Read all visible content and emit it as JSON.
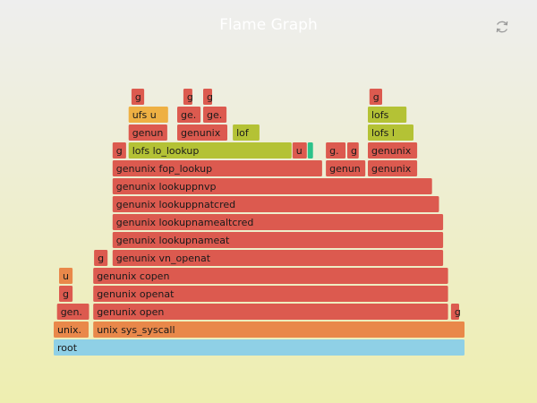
{
  "title": "Flame Graph",
  "refresh_icon": "refresh-icon",
  "colors": {
    "root": "#8fd0e6",
    "syscall": "#e9884a",
    "red": "#dc5a4f",
    "green": "#b4c235",
    "yellow": "#eeb043",
    "teal": "#2cc28a"
  },
  "chart_data": {
    "type": "flamegraph",
    "total": 100,
    "frames": [
      {
        "label": "root",
        "depth": 0,
        "start": 0.0,
        "width": 100.0,
        "color": "root"
      },
      {
        "label": "unix..",
        "depth": 1,
        "start": 0.0,
        "width": 8.7,
        "color": "syscall"
      },
      {
        "label": "unix sys_syscall",
        "depth": 1,
        "start": 9.6,
        "width": 90.4,
        "color": "syscall"
      },
      {
        "label": "gen..",
        "depth": 2,
        "start": 0.8,
        "width": 8.0,
        "color": "red"
      },
      {
        "label": "genunix open",
        "depth": 2,
        "start": 9.6,
        "width": 86.4,
        "color": "red"
      },
      {
        "label": "g",
        "depth": 2,
        "start": 96.5,
        "width": 2.2,
        "color": "red"
      },
      {
        "label": "g",
        "depth": 3,
        "start": 1.3,
        "width": 3.5,
        "color": "red"
      },
      {
        "label": "genunix openat",
        "depth": 3,
        "start": 9.6,
        "width": 86.4,
        "color": "red"
      },
      {
        "label": "u",
        "depth": 4,
        "start": 1.3,
        "width": 3.5,
        "color": "syscall"
      },
      {
        "label": "genunix copen",
        "depth": 4,
        "start": 9.6,
        "width": 86.4,
        "color": "red"
      },
      {
        "label": "g",
        "depth": 5,
        "start": 9.8,
        "width": 3.5,
        "color": "red"
      },
      {
        "label": "genunix vn_openat",
        "depth": 5,
        "start": 14.3,
        "width": 80.5,
        "color": "red"
      },
      {
        "label": "genunix lookupnameat",
        "depth": 6,
        "start": 14.3,
        "width": 80.5,
        "color": "red"
      },
      {
        "label": "genunix lookupnamealtcred",
        "depth": 7,
        "start": 14.3,
        "width": 80.5,
        "color": "red"
      },
      {
        "label": "genunix lookuppnatcred",
        "depth": 8,
        "start": 14.3,
        "width": 79.5,
        "color": "red"
      },
      {
        "label": "genunix lookuppnvp",
        "depth": 9,
        "start": 14.3,
        "width": 77.8,
        "color": "red"
      },
      {
        "label": "genunix fop_lookup",
        "depth": 10,
        "start": 14.3,
        "width": 51.1,
        "color": "red"
      },
      {
        "label": "genunix..",
        "depth": 10,
        "start": 66.1,
        "width": 9.8,
        "color": "red"
      },
      {
        "label": "genunix..",
        "depth": 10,
        "start": 76.3,
        "width": 12.2,
        "color": "red"
      },
      {
        "label": "g",
        "depth": 11,
        "start": 14.3,
        "width": 3.5,
        "color": "red"
      },
      {
        "label": "lofs lo_lookup",
        "depth": 11,
        "start": 18.2,
        "width": 39.8,
        "color": "green"
      },
      {
        "label": "u..",
        "depth": 11,
        "start": 58.0,
        "width": 3.7,
        "color": "red"
      },
      {
        "label": "",
        "depth": 11,
        "start": 61.7,
        "width": 1.5,
        "color": "teal"
      },
      {
        "label": "g..",
        "depth": 11,
        "start": 66.1,
        "width": 5.0,
        "color": "red"
      },
      {
        "label": "g",
        "depth": 11,
        "start": 71.3,
        "width": 3.0,
        "color": "red"
      },
      {
        "label": "genunix..",
        "depth": 11,
        "start": 76.3,
        "width": 12.2,
        "color": "red"
      },
      {
        "label": "genuni..",
        "depth": 12,
        "start": 18.2,
        "width": 9.6,
        "color": "red"
      },
      {
        "label": "genunix ..",
        "depth": 12,
        "start": 30.0,
        "width": 12.4,
        "color": "red"
      },
      {
        "label": "lofs..",
        "depth": 12,
        "start": 43.5,
        "width": 6.7,
        "color": "green"
      },
      {
        "label": "lofs lo_lookup",
        "depth": 12,
        "start": 76.3,
        "width": 11.3,
        "color": "green"
      },
      {
        "label": "ufs uf..",
        "depth": 13,
        "start": 18.2,
        "width": 9.8,
        "color": "yellow"
      },
      {
        "label": "ge..",
        "depth": 13,
        "start": 30.0,
        "width": 5.9,
        "color": "red"
      },
      {
        "label": "ge..",
        "depth": 13,
        "start": 36.3,
        "width": 5.9,
        "color": "red"
      },
      {
        "label": "lofs ..",
        "depth": 13,
        "start": 76.3,
        "width": 9.6,
        "color": "green"
      },
      {
        "label": "g",
        "depth": 14,
        "start": 18.9,
        "width": 3.3,
        "color": "red"
      },
      {
        "label": "g",
        "depth": 14,
        "start": 31.5,
        "width": 2.4,
        "color": "red"
      },
      {
        "label": "g",
        "depth": 14,
        "start": 36.3,
        "width": 2.4,
        "color": "red"
      },
      {
        "label": "g",
        "depth": 14,
        "start": 76.7,
        "width": 3.3,
        "color": "red"
      }
    ]
  }
}
